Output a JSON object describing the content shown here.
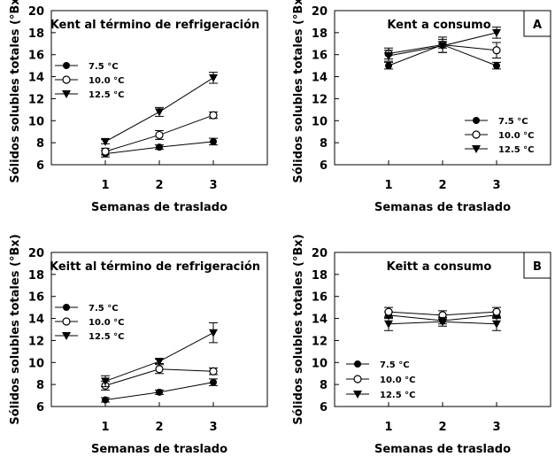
{
  "chart_data": [
    {
      "type": "line",
      "title": "Kent al término de refrigeración",
      "panel_label": "",
      "xlabel": "Semanas de traslado",
      "ylabel": "Sólidos solubles totales (°Bx)",
      "xlim": [
        0,
        4
      ],
      "ylim": [
        6,
        20
      ],
      "xticks": [
        1,
        2,
        3
      ],
      "yticks": [
        6,
        8,
        10,
        12,
        14,
        16,
        18,
        20
      ],
      "legend": "left",
      "x": [
        1,
        2,
        3
      ],
      "series": [
        {
          "name": "7.5 °C",
          "marker": "filled-circle",
          "values": [
            7.0,
            7.6,
            8.1
          ],
          "errors": [
            0.3,
            0.2,
            0.3
          ]
        },
        {
          "name": "10.0 °C",
          "marker": "open-circle",
          "values": [
            7.2,
            8.7,
            10.5
          ],
          "errors": [
            0.3,
            0.4,
            0.3
          ]
        },
        {
          "name": "12.5 °C",
          "marker": "filled-triangle-down",
          "values": [
            8.1,
            10.8,
            13.9
          ],
          "errors": [
            0.2,
            0.4,
            0.5
          ]
        }
      ]
    },
    {
      "type": "line",
      "title": "Kent a consumo",
      "panel_label": "A",
      "xlabel": "Semanas de traslado",
      "ylabel": "Sólidos solubles totales (°Bx)",
      "xlim": [
        0,
        4
      ],
      "ylim": [
        6,
        20
      ],
      "xticks": [
        1,
        2,
        3
      ],
      "yticks": [
        6,
        8,
        10,
        12,
        14,
        16,
        18,
        20
      ],
      "legend": "bottom-right",
      "x": [
        1,
        2,
        3
      ],
      "series": [
        {
          "name": "7.5 °C",
          "marker": "filled-circle",
          "values": [
            15.0,
            16.9,
            15.0
          ],
          "errors": [
            0.3,
            0.3,
            0.3
          ]
        },
        {
          "name": "10.0 °C",
          "marker": "open-circle",
          "values": [
            16.1,
            16.9,
            16.4
          ],
          "errors": [
            0.5,
            0.7,
            0.7
          ]
        },
        {
          "name": "12.5 °C",
          "marker": "filled-triangle-down",
          "values": [
            15.9,
            16.8,
            18.0
          ],
          "errors": [
            0.5,
            0.6,
            0.5
          ]
        }
      ]
    },
    {
      "type": "line",
      "title": "Keitt al término de refrigeración",
      "panel_label": "",
      "xlabel": "Semanas de traslado",
      "ylabel": "Sólidos solubles totales (°Bx)",
      "xlim": [
        0,
        4
      ],
      "ylim": [
        6,
        20
      ],
      "xticks": [
        1,
        2,
        3
      ],
      "yticks": [
        6,
        8,
        10,
        12,
        14,
        16,
        18,
        20
      ],
      "legend": "left",
      "x": [
        1,
        2,
        3
      ],
      "series": [
        {
          "name": "7.5 °C",
          "marker": "filled-circle",
          "values": [
            6.6,
            7.3,
            8.2
          ],
          "errors": [
            0.2,
            0.2,
            0.3
          ]
        },
        {
          "name": "10.0 °C",
          "marker": "open-circle",
          "values": [
            7.9,
            9.4,
            9.2
          ],
          "errors": [
            0.4,
            0.4,
            0.3
          ]
        },
        {
          "name": "12.5 °C",
          "marker": "filled-triangle-down",
          "values": [
            8.3,
            10.1,
            12.7
          ],
          "errors": [
            0.5,
            0.2,
            0.9
          ]
        }
      ]
    },
    {
      "type": "line",
      "title": "Keitt a consumo",
      "panel_label": "B",
      "xlabel": "Semanas de traslado",
      "ylabel": "Sólidos solubles totales (°Bx)",
      "xlim": [
        0,
        4
      ],
      "ylim": [
        6,
        20
      ],
      "xticks": [
        1,
        2,
        3
      ],
      "yticks": [
        6,
        8,
        10,
        12,
        14,
        16,
        18,
        20
      ],
      "legend": "bottom-left",
      "x": [
        1,
        2,
        3
      ],
      "series": [
        {
          "name": "7.5 °C",
          "marker": "filled-circle",
          "values": [
            14.3,
            13.8,
            14.3
          ],
          "errors": [
            0.3,
            0.3,
            0.3
          ]
        },
        {
          "name": "10.0 °C",
          "marker": "open-circle",
          "values": [
            14.6,
            14.3,
            14.6
          ],
          "errors": [
            0.4,
            0.4,
            0.4
          ]
        },
        {
          "name": "12.5 °C",
          "marker": "filled-triangle-down",
          "values": [
            13.5,
            13.7,
            13.5
          ],
          "errors": [
            0.6,
            0.4,
            0.6
          ]
        }
      ]
    }
  ]
}
